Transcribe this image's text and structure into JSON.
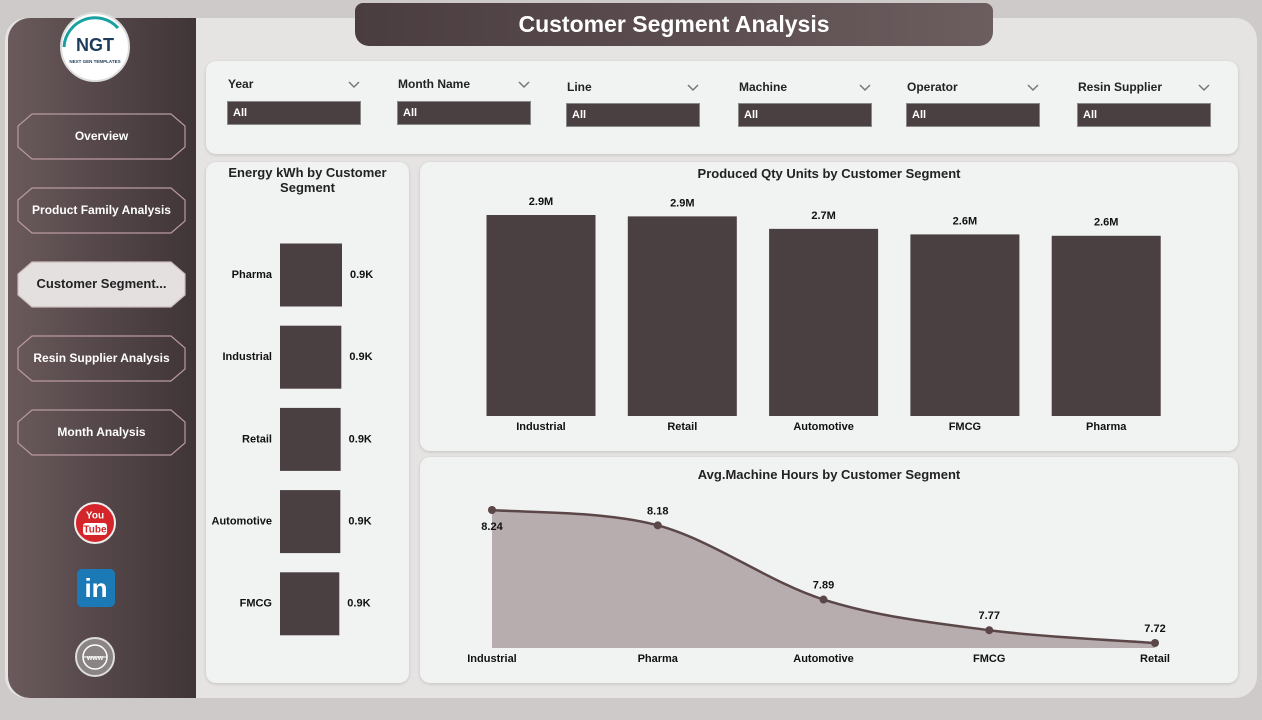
{
  "header": {
    "title": "Customer Segment Analysis"
  },
  "logo": {
    "name": "NGT",
    "tagline": "NEXT GEN TEMPLATES"
  },
  "nav": [
    "Overview",
    "Product Family Analysis",
    "Customer Segment...",
    "Resin Supplier Analysis",
    "Month Analysis"
  ],
  "social": {
    "youtube": [
      "You",
      "Tube"
    ],
    "linkedin": "in",
    "web": "www"
  },
  "filters": [
    {
      "label": "Year",
      "value": "All"
    },
    {
      "label": "Month Name",
      "value": "All"
    },
    {
      "label": "Line",
      "value": "All"
    },
    {
      "label": "Machine",
      "value": "All"
    },
    {
      "label": "Operator",
      "value": "All"
    },
    {
      "label": "Resin Supplier",
      "value": "All"
    }
  ],
  "chart_data": [
    {
      "type": "bar",
      "orientation": "horizontal",
      "title": "Energy kWh by Customer Segment",
      "categories": [
        "Pharma",
        "Industrial",
        "Retail",
        "Automotive",
        "FMCG"
      ],
      "values": [
        920,
        910,
        900,
        895,
        880
      ],
      "value_labels": [
        "0.9K",
        "0.9K",
        "0.9K",
        "0.9K",
        "0.9K"
      ],
      "color": "#4a3f41"
    },
    {
      "type": "bar",
      "title": "Produced Qty Units by Customer Segment",
      "categories": [
        "Industrial",
        "Retail",
        "Automotive",
        "FMCG",
        "Pharma"
      ],
      "values": [
        2900000,
        2880000,
        2700000,
        2620000,
        2600000
      ],
      "value_labels": [
        "2.9M",
        "2.9M",
        "2.7M",
        "2.6M",
        "2.6M"
      ],
      "color": "#4a3f41"
    },
    {
      "type": "area",
      "title": "Avg.Machine Hours by Customer Segment",
      "categories": [
        "Industrial",
        "Pharma",
        "Automotive",
        "FMCG",
        "Retail"
      ],
      "values": [
        8.24,
        8.18,
        7.89,
        7.77,
        7.72
      ],
      "color": "#5b4648",
      "fill": "#b8adae"
    }
  ]
}
